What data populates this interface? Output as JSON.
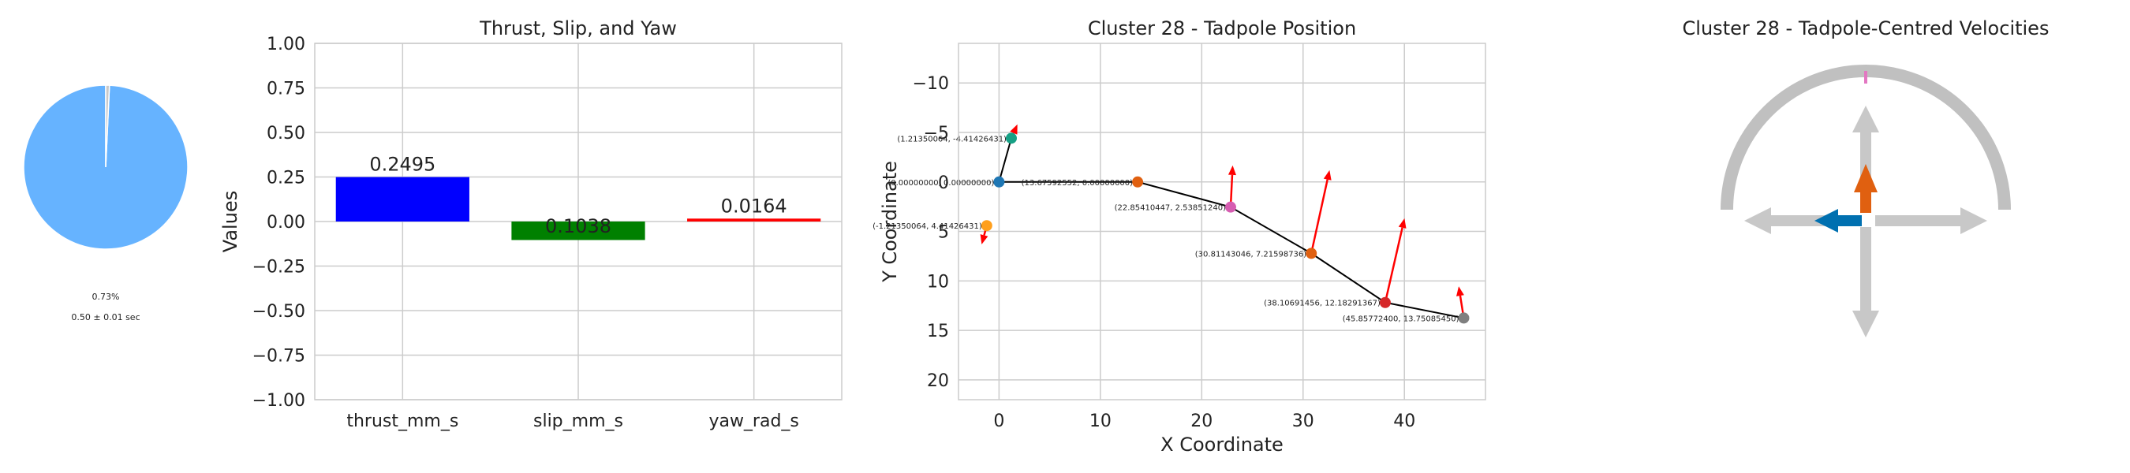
{
  "colors": {
    "pie_main": "#66b3ff",
    "pie_small": "#c8c8c8",
    "bar_thrust": "#0000ff",
    "bar_slip": "#008000",
    "bar_yaw": "#ff0000",
    "path_line": "#000000",
    "velocity_arrow": "#ff0000",
    "grid": "#cccccc",
    "arc": "#c0c0c0",
    "compass_arrow": "#c8c8c8",
    "thrust_arrow": "#e06010",
    "slip_arrow": "#0070b0",
    "yaw_marker": "#e377c2"
  },
  "chart_data": [
    {
      "type": "pie",
      "title": "",
      "values": [
        99.27,
        0.73
      ],
      "percent_label": "0.73%",
      "duration_label": "0.50 ± 0.01 sec"
    },
    {
      "type": "bar",
      "title": "Thrust, Slip, and Yaw",
      "categories": [
        "thrust_mm_s",
        "slip_mm_s",
        "yaw_rad_s"
      ],
      "values": [
        0.2495,
        -0.1038,
        0.0164
      ],
      "data_labels": [
        "0.2495",
        "0.1038",
        "0.0164"
      ],
      "xlabel": "",
      "ylabel": "Values",
      "ylim": [
        -1.0,
        1.0
      ],
      "yticks": [
        "−1.00",
        "−0.75",
        "−0.50",
        "−0.25",
        "0.00",
        "0.25",
        "0.50",
        "0.75",
        "1.00"
      ],
      "grid": true
    },
    {
      "type": "scatter",
      "title": "Cluster 28 - Tadpole Position",
      "xlabel": "X Coordinate",
      "ylabel": "Y Coordinate",
      "xlim": [
        -4,
        48
      ],
      "ylim": [
        22,
        -14
      ],
      "y_inverted": true,
      "xticks": [
        "0",
        "10",
        "20",
        "30",
        "40"
      ],
      "yticks": [
        "−10",
        "−5",
        "0",
        "5",
        "10",
        "15",
        "20"
      ],
      "grid": true,
      "points": [
        {
          "x": 0.0,
          "y": 0.0,
          "color": "#1f77b4",
          "label": "(0.00000000, 0.00000000)"
        },
        {
          "x": 1.2135,
          "y": -4.4143,
          "color": "#17a085",
          "label": "(1.21350064, -4.41426431)"
        },
        {
          "x": -1.2135,
          "y": 4.4143,
          "color": "#ff9f1c",
          "label": "(-1.21350064, 4.41426431)"
        },
        {
          "x": 13.6759,
          "y": 0.0,
          "color": "#e06010",
          "label": "(13.67592552, 0.00000000)"
        },
        {
          "x": 22.8541,
          "y": 2.5385,
          "color": "#d65db1",
          "label": "(22.85410447, 2.53851240)"
        },
        {
          "x": 30.8114,
          "y": 7.216,
          "color": "#e06010",
          "label": "(30.81143046, 7.21598736)"
        },
        {
          "x": 38.1069,
          "y": 12.1829,
          "color": "#d62728",
          "label": "(38.10691456, 12.18291367)"
        },
        {
          "x": 45.8577,
          "y": 13.7509,
          "color": "#7f7f7f",
          "label": "(45.85772400, 13.75085450)"
        }
      ],
      "path_order": [
        1,
        0,
        3,
        4,
        5,
        6,
        7
      ],
      "arrows": [
        {
          "x": 1.2135,
          "y": -4.4143,
          "dx": 0.6,
          "dy": -1.4
        },
        {
          "x": -1.2135,
          "y": 4.4143,
          "dx": -0.5,
          "dy": 1.9
        },
        {
          "x": 22.8541,
          "y": 2.5385,
          "dx": 0.2,
          "dy": -4.2
        },
        {
          "x": 30.8114,
          "y": 7.216,
          "dx": 1.8,
          "dy": -8.4
        },
        {
          "x": 38.1069,
          "y": 12.1829,
          "dx": 1.9,
          "dy": -8.5
        },
        {
          "x": 45.8577,
          "y": 13.7509,
          "dx": -0.5,
          "dy": -3.2
        }
      ]
    },
    {
      "type": "diagram",
      "title": "Cluster 28 - Tadpole-Centred Velocities",
      "thrust_direction": "up",
      "slip_direction": "left",
      "thrust_value": 0.2495,
      "slip_value": -0.1038,
      "yaw_value": 0.0164
    }
  ]
}
